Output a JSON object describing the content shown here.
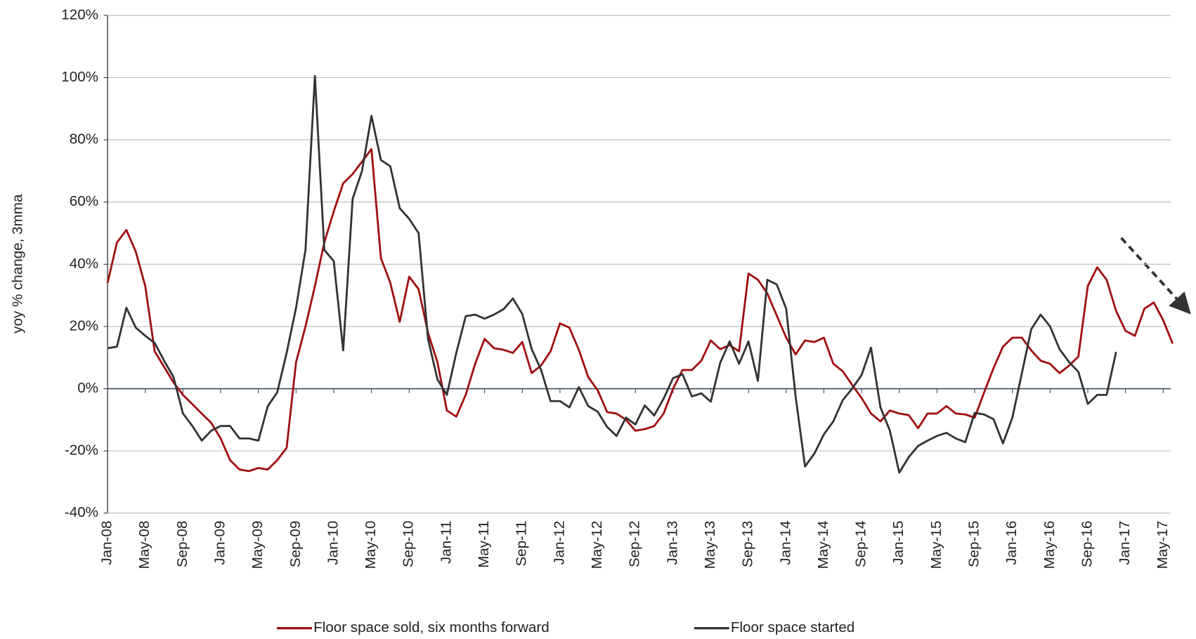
{
  "chart_data": {
    "type": "line",
    "y_axis_label": "yoy % change, 3mma",
    "categories": [
      "Jan-08",
      null,
      null,
      null,
      "May-08",
      null,
      null,
      null,
      "Sep-08",
      null,
      null,
      null,
      "Jan-09",
      null,
      null,
      null,
      "May-09",
      null,
      null,
      null,
      "Sep-09",
      null,
      null,
      null,
      "Jan-10",
      null,
      null,
      null,
      "May-10",
      null,
      null,
      null,
      "Sep-10",
      null,
      null,
      null,
      "Jan-11",
      null,
      null,
      null,
      "May-11",
      null,
      null,
      null,
      "Sep-11",
      null,
      null,
      null,
      "Jan-12",
      null,
      null,
      null,
      "May-12",
      null,
      null,
      null,
      "Sep-12",
      null,
      null,
      null,
      "Jan-13",
      null,
      null,
      null,
      "May-13",
      null,
      null,
      null,
      "Sep-13",
      null,
      null,
      null,
      "Jan-14",
      null,
      null,
      null,
      "May-14",
      null,
      null,
      null,
      "Sep-14",
      null,
      null,
      null,
      "Jan-15",
      null,
      null,
      null,
      "May-15",
      null,
      null,
      null,
      "Sep-15",
      null,
      null,
      null,
      "Jan-16",
      null,
      null,
      null,
      "May-16",
      null,
      null,
      null,
      "Sep-16",
      null,
      null,
      null,
      "Jan-17",
      null,
      null,
      null,
      "May-17",
      null
    ],
    "series": [
      {
        "name": "Floor space sold, six months forward",
        "color": "#a01010",
        "values": [
          34,
          47,
          51,
          44,
          33,
          12,
          7,
          2,
          -2,
          -5,
          -8,
          -11,
          -16,
          -23,
          -26,
          -26.5,
          -25.5,
          -26,
          -23,
          -19,
          8.5,
          20,
          33,
          47,
          57,
          66,
          69,
          73,
          77,
          42,
          34,
          21.5,
          36,
          32,
          18,
          8.5,
          -7,
          -9,
          -2,
          8,
          16,
          13,
          12.5,
          11.5,
          15,
          5,
          7.5,
          12,
          21,
          19.6,
          12.5,
          3.7,
          -0.5,
          -7.5,
          -8,
          -10,
          -13.5,
          -13,
          -12,
          -8,
          0,
          6,
          6,
          9,
          15.5,
          12.7,
          14,
          12,
          37,
          35,
          30.6,
          23.5,
          16.4,
          11,
          15.5,
          15,
          16.4,
          8,
          5.6,
          1.2,
          -3,
          -8,
          -10.5,
          -7,
          -8,
          -8.5,
          -12.7,
          -8,
          -8,
          -5.6,
          -8,
          -8.3,
          -9.3,
          -1.2,
          6.6,
          13.5,
          16.4,
          16.4,
          12.3,
          9,
          8,
          5,
          7.4,
          10.3,
          33,
          39,
          35,
          25,
          18.6,
          17,
          25.7,
          27.7,
          22,
          14.5
        ]
      },
      {
        "name": "Floor space started",
        "color": "#333333",
        "values": [
          13,
          13.5,
          26,
          19.6,
          17,
          14.7,
          9,
          3.7,
          -8,
          -12,
          -16.7,
          -13.5,
          -12,
          -12,
          -16,
          -16,
          -16.7,
          -5.6,
          -1.2,
          11.5,
          26,
          44.6,
          100.5,
          44.6,
          41,
          12.3,
          61,
          70,
          87.7,
          73.5,
          71.5,
          58,
          54.6,
          50,
          16,
          3,
          -2,
          11.5,
          23.3,
          23.8,
          22.5,
          23.8,
          25.5,
          29,
          24,
          12.7,
          6,
          -4,
          -4,
          -6,
          0.5,
          -5.6,
          -7.4,
          -12.3,
          -15.2,
          -9.3,
          -11.5,
          -5.4,
          -8.6,
          -3.2,
          3.4,
          4.6,
          -2.5,
          -1.5,
          -4.2,
          8.3,
          15.2,
          8,
          15.2,
          2.5,
          35,
          33.5,
          25.7,
          -2.5,
          -25,
          -20.8,
          -14.7,
          -10.5,
          -3.7,
          0,
          4.4,
          13.2,
          -6,
          -13.5,
          -27,
          -22,
          -18.4,
          -16.7,
          -15.2,
          -14.2,
          -16,
          -17.2,
          -7.8,
          -8.3,
          -9.8,
          -17.6,
          -9.3,
          4.9,
          19.1,
          23.8,
          20,
          12.7,
          8.6,
          5.4,
          -4.9,
          -2,
          -2,
          11.8,
          null,
          null,
          null,
          null,
          null,
          null
        ]
      }
    ],
    "ylim": [
      -40,
      120
    ],
    "yticks": [
      {
        "value": -40,
        "label": "-40%"
      },
      {
        "value": -20,
        "label": "-20%"
      },
      {
        "value": 0,
        "label": "0%"
      },
      {
        "value": 20,
        "label": "20%"
      },
      {
        "value": 40,
        "label": "40%"
      },
      {
        "value": 60,
        "label": "60%"
      },
      {
        "value": 80,
        "label": "80%"
      },
      {
        "value": 100,
        "label": "100%"
      },
      {
        "value": 120,
        "label": "120%"
      }
    ],
    "grid": true
  }
}
